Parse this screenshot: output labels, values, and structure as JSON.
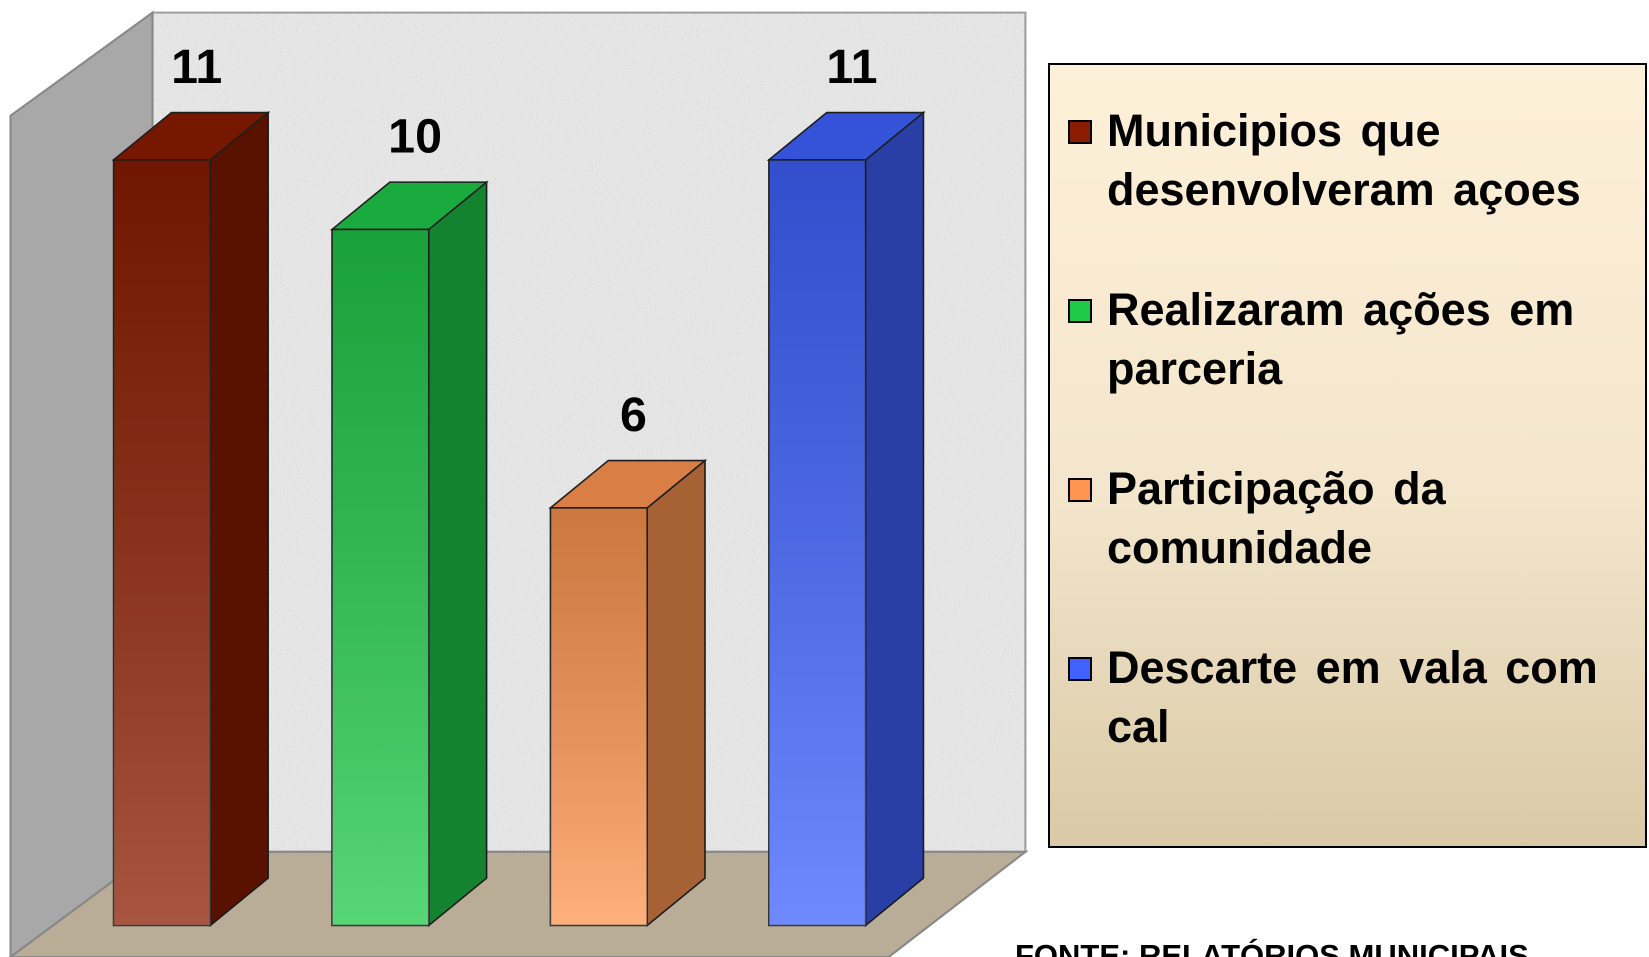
{
  "chart_data": {
    "type": "bar",
    "categories": [
      null
    ],
    "series": [
      {
        "name": "Municipios que desenvolveram  açoes",
        "color": "#8b1c00",
        "values": [
          11
        ]
      },
      {
        "name": "Realizaram ações em parceria",
        "color": "#1fc94a",
        "values": [
          10
        ]
      },
      {
        "name": "Participação da comunidade",
        "color": "#ff9550",
        "values": [
          6
        ]
      },
      {
        "name": "Descarte em vala com cal",
        "color": "#3f62ff",
        "values": [
          11
        ]
      }
    ],
    "source": "FONTE: RELATÓRIOS MUNICIPAIS"
  }
}
